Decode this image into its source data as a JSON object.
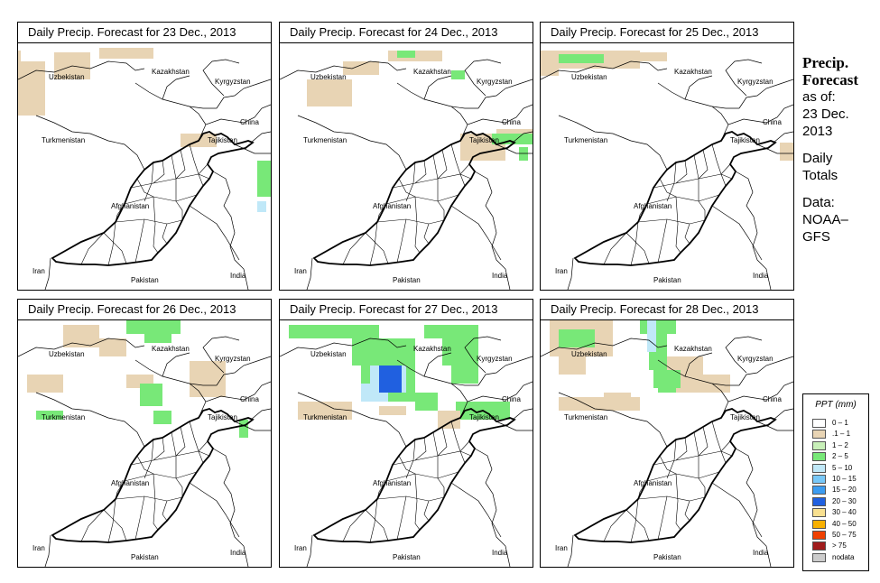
{
  "panels": [
    {
      "title": "Daily Precip. Forecast for  23 Dec., 2013",
      "rain": [
        {
          "color": "tan",
          "cells": [
            [
              0,
              8,
              3,
              30
            ],
            [
              40,
              10,
              40,
              30
            ],
            [
              90,
              5,
              60,
              12
            ],
            [
              0,
              20,
              30,
              60
            ],
            [
              180,
              100,
              40,
              15
            ]
          ]
        },
        {
          "color": "green",
          "cells": [
            [
              265,
              130,
              15,
              40
            ]
          ]
        },
        {
          "color": "lightblue",
          "cells": [
            [
              265,
              175,
              10,
              12
            ]
          ]
        }
      ]
    },
    {
      "title": "Daily Precip. Forecast for  24 Dec., 2013",
      "rain": [
        {
          "color": "tan",
          "cells": [
            [
              30,
              40,
              50,
              30
            ],
            [
              70,
              20,
              40,
              15
            ],
            [
              120,
              8,
              60,
              12
            ],
            [
              200,
              100,
              50,
              30
            ],
            [
              240,
              95,
              40,
              10
            ]
          ]
        },
        {
          "color": "green",
          "cells": [
            [
              130,
              8,
              20,
              8
            ],
            [
              190,
              30,
              15,
              10
            ],
            [
              235,
              100,
              45,
              12
            ],
            [
              265,
              115,
              10,
              15
            ]
          ]
        }
      ]
    },
    {
      "title": "Daily Precip. Forecast for  25 Dec., 2013",
      "rain": [
        {
          "color": "tan",
          "cells": [
            [
              0,
              8,
              110,
              20
            ],
            [
              110,
              10,
              30,
              10
            ],
            [
              0,
              28,
              20,
              8
            ],
            [
              265,
              110,
              15,
              20
            ]
          ]
        },
        {
          "color": "green",
          "cells": [
            [
              20,
              12,
              50,
              10
            ]
          ]
        }
      ]
    },
    {
      "title": "Daily Precip. Forecast for  26 Dec., 2013",
      "rain": [
        {
          "color": "tan",
          "cells": [
            [
              50,
              5,
              40,
              25
            ],
            [
              90,
              20,
              30,
              20
            ],
            [
              10,
              60,
              40,
              20
            ],
            [
              120,
              60,
              30,
              15
            ],
            [
              190,
              45,
              40,
              40
            ]
          ]
        },
        {
          "color": "green",
          "cells": [
            [
              120,
              0,
              60,
              15
            ],
            [
              140,
              10,
              30,
              15
            ],
            [
              20,
              100,
              30,
              10
            ],
            [
              135,
              70,
              25,
              25
            ],
            [
              150,
              100,
              20,
              15
            ],
            [
              245,
              110,
              10,
              20
            ]
          ]
        }
      ]
    },
    {
      "title": "Daily Precip. Forecast for  27 Dec., 2013",
      "rain": [
        {
          "color": "green",
          "cells": [
            [
              10,
              5,
              100,
              15
            ],
            [
              80,
              20,
              70,
              30
            ],
            [
              90,
              50,
              60,
              40
            ],
            [
              160,
              5,
              60,
              15
            ],
            [
              180,
              20,
              40,
              30
            ],
            [
              190,
              50,
              30,
              20
            ],
            [
              150,
              80,
              25,
              20
            ],
            [
              195,
              90,
              60,
              20
            ]
          ]
        },
        {
          "color": "tan",
          "cells": [
            [
              20,
              90,
              60,
              20
            ],
            [
              110,
              95,
              30,
              10
            ],
            [
              175,
              100,
              25,
              20
            ]
          ]
        },
        {
          "color": "lightblue",
          "cells": [
            [
              100,
              50,
              40,
              30
            ],
            [
              90,
              70,
              30,
              20
            ]
          ]
        },
        {
          "color": "blue",
          "cells": [
            [
              110,
              50,
              25,
              30
            ],
            [
              120,
              65,
              10,
              15
            ]
          ]
        }
      ]
    },
    {
      "title": "Daily Precip. Forecast for  28 Dec., 2013",
      "rain": [
        {
          "color": "tan",
          "cells": [
            [
              10,
              0,
              70,
              40
            ],
            [
              20,
              40,
              30,
              20
            ],
            [
              130,
              40,
              50,
              25
            ],
            [
              150,
              60,
              60,
              20
            ],
            [
              20,
              85,
              90,
              15
            ],
            [
              70,
              80,
              30,
              10
            ]
          ]
        },
        {
          "color": "green",
          "cells": [
            [
              20,
              10,
              40,
              20
            ],
            [
              110,
              0,
              40,
              15
            ],
            [
              120,
              15,
              20,
              40
            ],
            [
              125,
              55,
              30,
              20
            ],
            [
              130,
              70,
              20,
              10
            ]
          ]
        },
        {
          "color": "lightblue",
          "cells": [
            [
              118,
              0,
              10,
              35
            ]
          ]
        }
      ]
    }
  ],
  "labels": {
    "uzbekistan": "Uzbekistan",
    "kazakhstan": "Kazakhstan",
    "kyrgyzstan": "Kyrgyzstan",
    "china": "China",
    "tajikistan": "Tajikistan",
    "turkmenistan": "Turkmenistan",
    "afghanistan": "Afghanistan",
    "iran": "Iran",
    "pakistan": "Pakistan",
    "india": "India"
  },
  "side": {
    "line1": "Precip.",
    "line2": "Forecast",
    "line3": "as of:",
    "line4": "23 Dec.",
    "line5": "2013",
    "line6": "Daily",
    "line7": "Totals",
    "line8": "Data:",
    "line9": "NOAA–",
    "line10": "GFS"
  },
  "legend": {
    "title": "PPT (mm)",
    "rows": [
      {
        "label": "0 – 1",
        "color": "#ffffff"
      },
      {
        "label": ".1 – 1",
        "color": "#e8d4b4"
      },
      {
        "label": "1 – 2",
        "color": "#c8f0b8"
      },
      {
        "label": "2 – 5",
        "color": "#78e878"
      },
      {
        "label": "5 – 10",
        "color": "#c0e8f8"
      },
      {
        "label": "10 – 15",
        "color": "#78c8f8"
      },
      {
        "label": "15 – 20",
        "color": "#3c9cf0"
      },
      {
        "label": "20 – 30",
        "color": "#2060e0"
      },
      {
        "label": "30 – 40",
        "color": "#f8e090"
      },
      {
        "label": "40 – 50",
        "color": "#f8b000"
      },
      {
        "label": "50 – 75",
        "color": "#f04000"
      },
      {
        "label": "> 75",
        "color": "#a01c1c"
      },
      {
        "label": "nodata",
        "color": "#cccccc"
      }
    ]
  },
  "rain_colors": {
    "tan": "#e8d4b4",
    "green": "#78e878",
    "lightgreen": "#c8f0b8",
    "lightblue": "#c0e8f8",
    "blue": "#2060e0"
  }
}
